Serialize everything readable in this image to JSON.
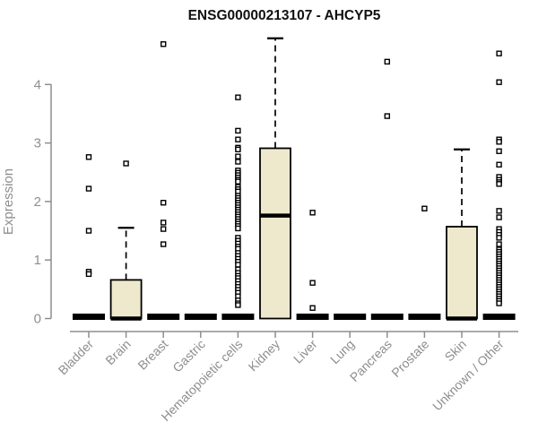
{
  "chart_data": {
    "type": "boxplot",
    "title": "ENSG00000213107 - AHCYP5",
    "ylabel": "Expression",
    "xlabel": "",
    "ylim": [
      0,
      4.8
    ],
    "y_ticks": [
      0,
      1,
      2,
      3,
      4
    ],
    "grid": false,
    "legend": "none",
    "colors": {
      "box_fill": "#EEE8CD",
      "box_stroke": "#000000",
      "axis": "#8E8E8E",
      "tick_label": "#8E8E8E",
      "title": "#111111",
      "outlier_fill": "#FFFFFF"
    },
    "categories": [
      "Bladder",
      "Brain",
      "Breast",
      "Gastric",
      "Hematopoietic cells",
      "Kidney",
      "Liver",
      "Lung",
      "Pancreas",
      "Prostate",
      "Skin",
      "Unknown / Other"
    ],
    "series": [
      {
        "label": "Bladder",
        "whisker_low": 0,
        "q1": 0,
        "median": 0,
        "q3": 0,
        "whisker_high": 0,
        "outliers": [
          2.76,
          2.22,
          1.5,
          0.8,
          0.76
        ]
      },
      {
        "label": "Brain",
        "whisker_low": 0,
        "q1": 0,
        "median": 0,
        "q3": 0.66,
        "whisker_high": 1.55,
        "outliers": [
          2.65
        ]
      },
      {
        "label": "Breast",
        "whisker_low": 0,
        "q1": 0,
        "median": 0,
        "q3": 0,
        "whisker_high": 0,
        "outliers": [
          4.69,
          1.98,
          1.64,
          1.53,
          1.27
        ]
      },
      {
        "label": "Gastric",
        "whisker_low": 0,
        "q1": 0,
        "median": 0,
        "q3": 0,
        "whisker_high": 0,
        "outliers": []
      },
      {
        "label": "Hematopoietic cells",
        "whisker_low": 0,
        "q1": 0,
        "median": 0,
        "q3": 0,
        "whisker_high": 0,
        "outliers": [
          3.78,
          3.21,
          3.06,
          2.92,
          2.89,
          2.77,
          2.68,
          2.53,
          2.49,
          2.45,
          2.41,
          2.37,
          2.34,
          2.25,
          2.21,
          2.17,
          2.1,
          2.06,
          2.02,
          1.98,
          1.94,
          1.9,
          1.86,
          1.82,
          1.78,
          1.74,
          1.7,
          1.66,
          1.62,
          1.58,
          1.54,
          1.38,
          1.33,
          1.28,
          1.23,
          1.19,
          1.12,
          1.07,
          1.02,
          0.97,
          0.92,
          0.84,
          0.78,
          0.73,
          0.69,
          0.64,
          0.59,
          0.54,
          0.49,
          0.44,
          0.38,
          0.31,
          0.26,
          0.23
        ]
      },
      {
        "label": "Kidney",
        "whisker_low": 0,
        "q1": 0,
        "median": 1.76,
        "q3": 2.91,
        "whisker_high": 4.79,
        "outliers": []
      },
      {
        "label": "Liver",
        "whisker_low": 0,
        "q1": 0,
        "median": 0,
        "q3": 0,
        "whisker_high": 0,
        "outliers": [
          1.81,
          0.61,
          0.18
        ]
      },
      {
        "label": "Lung",
        "whisker_low": 0,
        "q1": 0,
        "median": 0,
        "q3": 0,
        "whisker_high": 0,
        "outliers": []
      },
      {
        "label": "Pancreas",
        "whisker_low": 0,
        "q1": 0,
        "median": 0,
        "q3": 0,
        "whisker_high": 0,
        "outliers": [
          4.39,
          3.46
        ]
      },
      {
        "label": "Prostate",
        "whisker_low": 0,
        "q1": 0,
        "median": 0,
        "q3": 0,
        "whisker_high": 0,
        "outliers": [
          1.88
        ]
      },
      {
        "label": "Skin",
        "whisker_low": 0,
        "q1": 0,
        "median": 0,
        "q3": 1.57,
        "whisker_high": 2.89,
        "outliers": []
      },
      {
        "label": "Unknown / Other",
        "whisker_low": 0,
        "q1": 0,
        "median": 0,
        "q3": 0,
        "whisker_high": 0,
        "outliers": [
          4.53,
          4.04,
          3.06,
          3.02,
          2.86,
          2.63,
          2.42,
          2.37,
          2.33,
          2.3,
          1.84,
          1.73,
          1.53,
          1.48,
          1.43,
          1.38,
          1.27,
          1.18,
          1.14,
          1.1,
          1.06,
          1.02,
          0.98,
          0.94,
          0.9,
          0.86,
          0.82,
          0.78,
          0.74,
          0.7,
          0.66,
          0.62,
          0.58,
          0.54,
          0.5,
          0.46,
          0.42,
          0.38,
          0.34,
          0.3,
          0.26
        ]
      }
    ]
  }
}
